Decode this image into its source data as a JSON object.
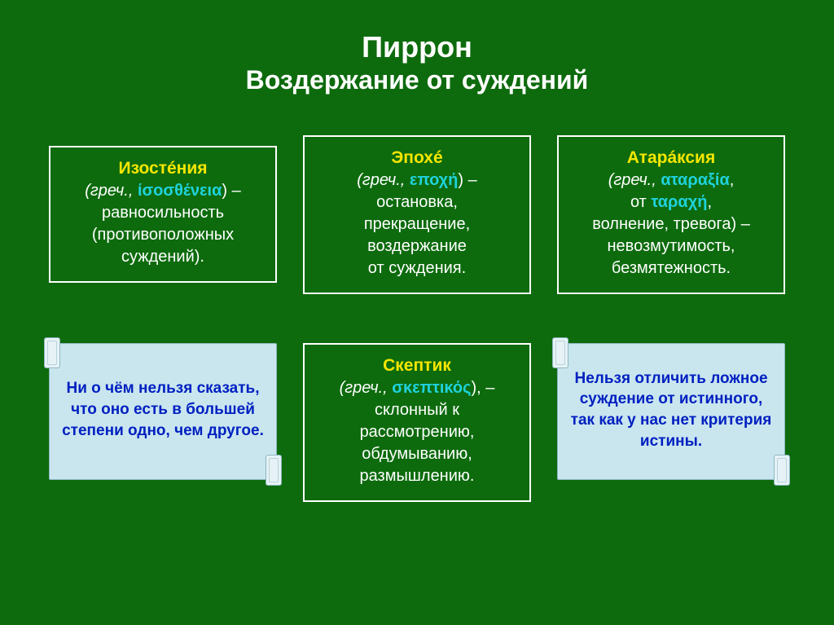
{
  "background_color": "#0d6b0d",
  "text_colors": {
    "white": "#ffffff",
    "yellow": "#f5e600",
    "teal": "#1fd2dc",
    "blue": "#0020c0"
  },
  "title": {
    "line1": "Пиррон",
    "line2": "Воздержание от суждений"
  },
  "top_cards": [
    {
      "term": "Изостéния",
      "gr_prefix": "(греч., ",
      "greek": "ίσοσθένεια",
      "gr_suffix": ") –",
      "def1": "равносильность",
      "def2": "(противоположных",
      "def3": "суждений)."
    },
    {
      "term": "Эпохé",
      "gr_prefix": "(греч., ",
      "greek": "εποχή",
      "gr_suffix": ") –",
      "def1": "остановка,",
      "def2": "прекращение,",
      "def3": "воздержание",
      "def4": "от суждения."
    },
    {
      "term": "Атарáксия",
      "gr_prefix": "(греч., ",
      "greek": "αταραξία",
      "gr_suffix": ",",
      "from_label": "от ",
      "greek2": "ταραχή",
      "gr_suffix2": ",",
      "def1": "волнение, тревога) –",
      "def2": "невозмутимость,",
      "def3": "безмятежность."
    }
  ],
  "bottom": {
    "left_scroll": "Ни о чём нельзя сказать, что оно есть в большей степени одно, чем другое.",
    "middle_card": {
      "term": "Скептик",
      "gr_prefix": "(греч., ",
      "greek": "σκεπτικός",
      "gr_suffix": "), –",
      "def1": "склонный к",
      "def2": "рассмотрению,",
      "def3": "обдумыванию,",
      "def4": "размышлению."
    },
    "right_scroll": "Нельзя отличить ложное суждение от истинного, так как у нас нет критерия истины."
  }
}
